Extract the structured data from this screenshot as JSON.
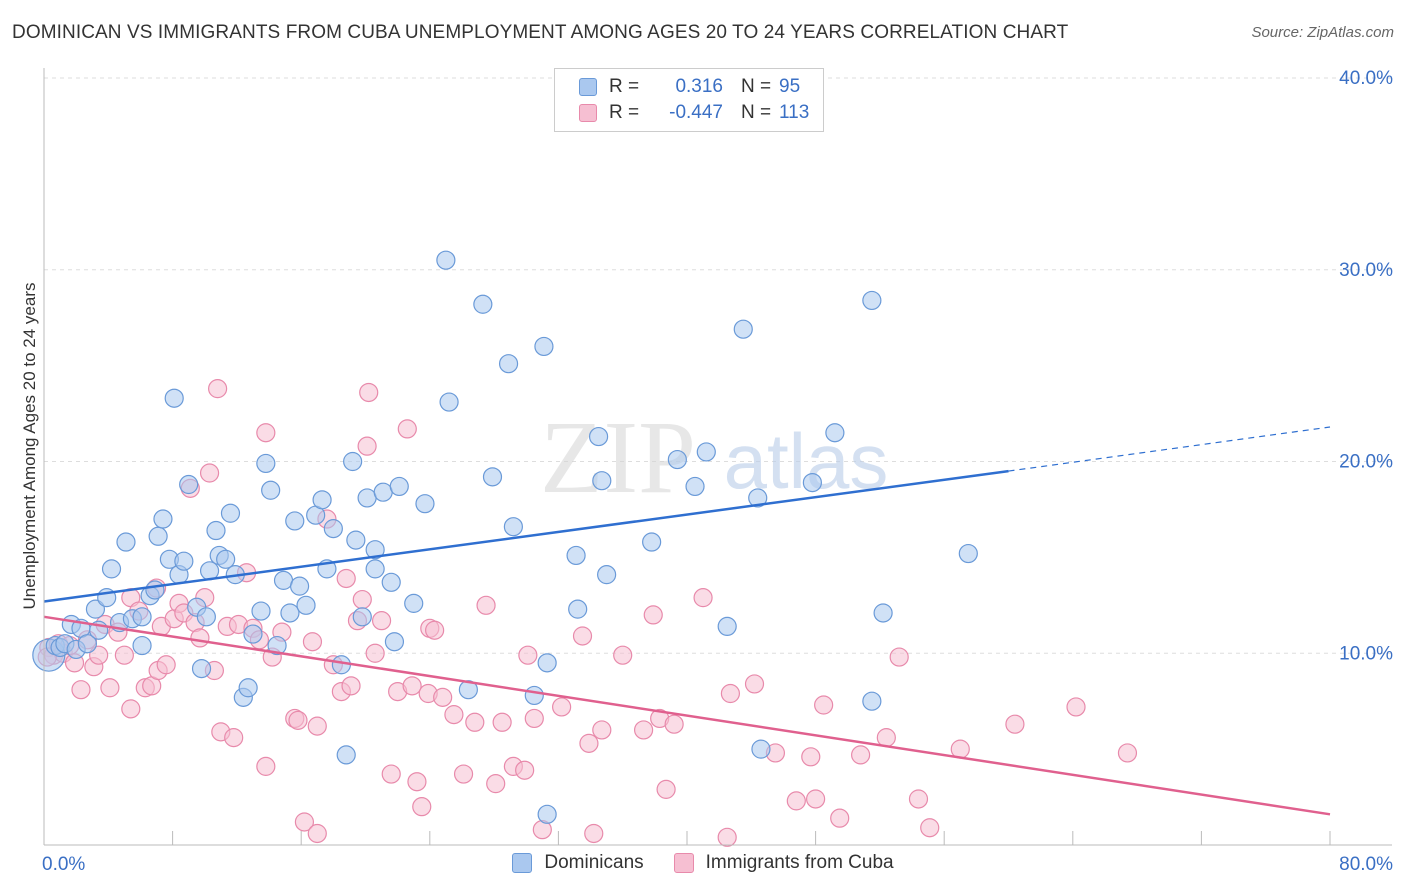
{
  "title": "DOMINICAN VS IMMIGRANTS FROM CUBA UNEMPLOYMENT AMONG AGES 20 TO 24 YEARS CORRELATION CHART",
  "source": "Source: ZipAtlas.com",
  "watermark": {
    "zip": "ZIP",
    "atlas": "atlas"
  },
  "legend_stats": [
    {
      "r_label": "R =",
      "r_value": "0.316",
      "n_label": "N =",
      "n_value": "95"
    },
    {
      "r_label": "R =",
      "r_value": "-0.447",
      "n_label": "N =",
      "n_value": "113"
    }
  ],
  "colors": {
    "blue_fill": "#aac8ef",
    "blue_stroke": "#6a9ad8",
    "blue_line": "#2f6fd0",
    "pink_fill": "#f6bfd2",
    "pink_stroke": "#e88aab",
    "pink_line": "#e0608e",
    "tick_label": "#3a6fc4",
    "grid": "#dddddd"
  },
  "chart_data": {
    "type": "scatter",
    "title": "DOMINICAN VS IMMIGRANTS FROM CUBA UNEMPLOYMENT AMONG AGES 20 TO 24 YEARS CORRELATION CHART",
    "xlabel": "",
    "ylabel": "Unemployment Among Ages 20 to 24 years",
    "xlim": [
      0,
      80
    ],
    "ylim": [
      0,
      40
    ],
    "x_tick_labels": [
      "0.0%",
      "80.0%"
    ],
    "y_ticks": [
      10,
      20,
      30,
      40
    ],
    "y_tick_labels": [
      "10.0%",
      "20.0%",
      "30.0%",
      "40.0%"
    ],
    "grid": true,
    "legend": "top-center",
    "series": [
      {
        "name": "Dominicans",
        "trend": {
          "x": [
            0,
            60
          ],
          "y": [
            12.7,
            19.5
          ],
          "dashed_to": {
            "x": 80,
            "y": 21.8
          }
        },
        "points": [
          [
            0.3,
            9.9
          ],
          [
            0.7,
            10.4
          ],
          [
            1.0,
            10.3
          ],
          [
            1.3,
            10.5
          ],
          [
            1.7,
            11.5
          ],
          [
            2.0,
            10.2
          ],
          [
            2.3,
            11.3
          ],
          [
            2.7,
            10.5
          ],
          [
            3.2,
            12.3
          ],
          [
            3.4,
            11.2
          ],
          [
            3.9,
            12.9
          ],
          [
            4.2,
            14.4
          ],
          [
            4.7,
            11.6
          ],
          [
            5.1,
            15.8
          ],
          [
            5.5,
            11.8
          ],
          [
            6.1,
            11.9
          ],
          [
            6.1,
            10.4
          ],
          [
            6.6,
            13.0
          ],
          [
            6.9,
            13.3
          ],
          [
            7.1,
            16.1
          ],
          [
            7.4,
            17.0
          ],
          [
            7.8,
            14.9
          ],
          [
            8.1,
            23.3
          ],
          [
            8.4,
            14.1
          ],
          [
            8.7,
            14.8
          ],
          [
            9.0,
            18.8
          ],
          [
            9.5,
            12.4
          ],
          [
            9.8,
            9.2
          ],
          [
            10.1,
            11.9
          ],
          [
            10.3,
            14.3
          ],
          [
            10.7,
            16.4
          ],
          [
            10.9,
            15.1
          ],
          [
            11.3,
            14.9
          ],
          [
            11.6,
            17.3
          ],
          [
            11.9,
            14.1
          ],
          [
            12.4,
            7.7
          ],
          [
            12.7,
            8.2
          ],
          [
            13.0,
            11.0
          ],
          [
            13.5,
            12.2
          ],
          [
            13.8,
            19.9
          ],
          [
            14.1,
            18.5
          ],
          [
            14.5,
            10.4
          ],
          [
            14.9,
            13.8
          ],
          [
            15.3,
            12.1
          ],
          [
            15.6,
            16.9
          ],
          [
            15.9,
            13.5
          ],
          [
            16.3,
            12.5
          ],
          [
            16.9,
            17.2
          ],
          [
            17.3,
            18.0
          ],
          [
            17.6,
            14.4
          ],
          [
            18.0,
            16.5
          ],
          [
            18.5,
            9.4
          ],
          [
            18.8,
            4.7
          ],
          [
            19.2,
            20.0
          ],
          [
            19.4,
            15.9
          ],
          [
            19.8,
            11.9
          ],
          [
            20.1,
            18.1
          ],
          [
            20.6,
            15.4
          ],
          [
            20.6,
            14.4
          ],
          [
            21.1,
            18.4
          ],
          [
            21.6,
            13.7
          ],
          [
            21.8,
            10.6
          ],
          [
            22.1,
            18.7
          ],
          [
            23.0,
            12.6
          ],
          [
            23.7,
            17.8
          ],
          [
            25.0,
            30.5
          ],
          [
            25.2,
            23.1
          ],
          [
            26.4,
            8.1
          ],
          [
            27.3,
            28.2
          ],
          [
            27.9,
            19.2
          ],
          [
            28.9,
            25.1
          ],
          [
            29.2,
            16.6
          ],
          [
            30.5,
            7.8
          ],
          [
            31.1,
            26.0
          ],
          [
            31.3,
            9.5
          ],
          [
            31.3,
            1.6
          ],
          [
            33.1,
            15.1
          ],
          [
            33.2,
            12.3
          ],
          [
            34.5,
            21.3
          ],
          [
            34.7,
            19.0
          ],
          [
            35.0,
            14.1
          ],
          [
            37.8,
            15.8
          ],
          [
            39.4,
            20.1
          ],
          [
            40.5,
            18.7
          ],
          [
            41.2,
            20.5
          ],
          [
            42.5,
            11.4
          ],
          [
            43.5,
            26.9
          ],
          [
            44.4,
            18.1
          ],
          [
            44.6,
            5.0
          ],
          [
            47.8,
            18.9
          ],
          [
            49.2,
            21.5
          ],
          [
            51.5,
            28.4
          ],
          [
            51.5,
            7.5
          ],
          [
            52.2,
            12.1
          ],
          [
            57.5,
            15.2
          ]
        ]
      },
      {
        "name": "Immigrants from Cuba",
        "trend": {
          "x": [
            0,
            80
          ],
          "y": [
            11.9,
            1.6
          ]
        },
        "points": [
          [
            0.3,
            10.3
          ],
          [
            0.6,
            9.9
          ],
          [
            0.9,
            10.5
          ],
          [
            1.2,
            10.0
          ],
          [
            1.6,
            10.4
          ],
          [
            1.9,
            9.5
          ],
          [
            2.3,
            8.1
          ],
          [
            2.7,
            10.7
          ],
          [
            3.1,
            9.3
          ],
          [
            3.4,
            9.9
          ],
          [
            3.8,
            11.5
          ],
          [
            4.1,
            8.2
          ],
          [
            4.6,
            11.1
          ],
          [
            5.0,
            9.9
          ],
          [
            5.4,
            12.9
          ],
          [
            5.4,
            7.1
          ],
          [
            5.9,
            12.2
          ],
          [
            6.3,
            8.2
          ],
          [
            6.7,
            8.3
          ],
          [
            7.0,
            13.4
          ],
          [
            7.1,
            9.1
          ],
          [
            7.3,
            11.4
          ],
          [
            7.6,
            9.4
          ],
          [
            8.1,
            11.8
          ],
          [
            8.4,
            12.6
          ],
          [
            8.7,
            12.1
          ],
          [
            9.1,
            18.6
          ],
          [
            9.4,
            11.6
          ],
          [
            9.7,
            10.8
          ],
          [
            10.0,
            12.9
          ],
          [
            10.3,
            19.4
          ],
          [
            10.6,
            9.1
          ],
          [
            10.8,
            23.8
          ],
          [
            11.0,
            5.9
          ],
          [
            11.4,
            11.4
          ],
          [
            11.8,
            5.6
          ],
          [
            12.1,
            11.5
          ],
          [
            12.6,
            14.2
          ],
          [
            13.0,
            11.3
          ],
          [
            13.4,
            10.7
          ],
          [
            13.8,
            4.1
          ],
          [
            13.8,
            21.5
          ],
          [
            14.2,
            9.8
          ],
          [
            14.8,
            11.1
          ],
          [
            15.6,
            6.6
          ],
          [
            15.8,
            6.5
          ],
          [
            16.2,
            1.2
          ],
          [
            16.7,
            10.6
          ],
          [
            17.0,
            6.2
          ],
          [
            17.0,
            0.6
          ],
          [
            17.6,
            17.0
          ],
          [
            18.0,
            9.4
          ],
          [
            18.5,
            8.0
          ],
          [
            18.8,
            13.9
          ],
          [
            19.1,
            8.3
          ],
          [
            19.5,
            11.7
          ],
          [
            19.8,
            12.8
          ],
          [
            20.1,
            20.8
          ],
          [
            20.2,
            23.6
          ],
          [
            20.6,
            10.0
          ],
          [
            21.0,
            11.7
          ],
          [
            21.6,
            3.7
          ],
          [
            22.0,
            8.0
          ],
          [
            22.6,
            21.7
          ],
          [
            22.9,
            8.3
          ],
          [
            23.2,
            3.3
          ],
          [
            23.5,
            2.0
          ],
          [
            23.9,
            7.9
          ],
          [
            24.0,
            11.3
          ],
          [
            24.3,
            11.2
          ],
          [
            24.8,
            7.7
          ],
          [
            25.5,
            6.8
          ],
          [
            26.1,
            3.7
          ],
          [
            26.8,
            6.4
          ],
          [
            27.5,
            12.5
          ],
          [
            28.1,
            3.2
          ],
          [
            28.5,
            6.4
          ],
          [
            29.2,
            4.1
          ],
          [
            29.9,
            3.9
          ],
          [
            30.1,
            9.9
          ],
          [
            30.5,
            6.6
          ],
          [
            31.0,
            0.8
          ],
          [
            32.2,
            7.2
          ],
          [
            33.5,
            10.9
          ],
          [
            33.9,
            5.3
          ],
          [
            34.2,
            0.6
          ],
          [
            34.7,
            6.0
          ],
          [
            36.0,
            9.9
          ],
          [
            37.3,
            6.0
          ],
          [
            37.9,
            12.0
          ],
          [
            38.3,
            6.6
          ],
          [
            38.7,
            2.9
          ],
          [
            39.2,
            6.3
          ],
          [
            41.0,
            12.9
          ],
          [
            42.5,
            0.4
          ],
          [
            42.7,
            7.9
          ],
          [
            44.2,
            8.4
          ],
          [
            45.5,
            4.8
          ],
          [
            46.8,
            2.3
          ],
          [
            47.7,
            4.6
          ],
          [
            48.0,
            2.4
          ],
          [
            48.5,
            7.3
          ],
          [
            49.5,
            1.4
          ],
          [
            50.8,
            4.7
          ],
          [
            52.4,
            5.6
          ],
          [
            53.2,
            9.8
          ],
          [
            54.4,
            2.4
          ],
          [
            55.1,
            0.9
          ],
          [
            57.0,
            5.0
          ],
          [
            60.4,
            6.3
          ],
          [
            64.2,
            7.2
          ],
          [
            67.4,
            4.8
          ],
          [
            0.2,
            9.8
          ]
        ]
      }
    ]
  }
}
